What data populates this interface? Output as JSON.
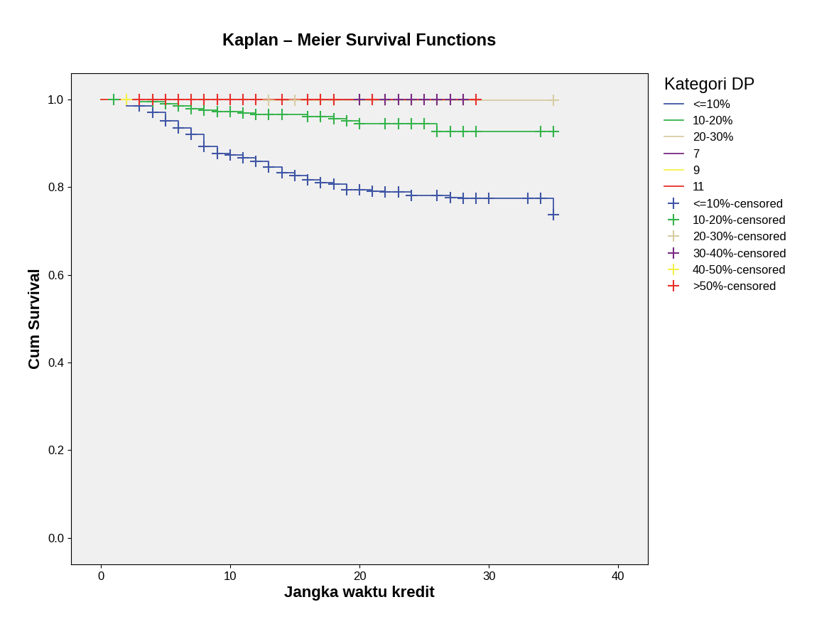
{
  "chart_data": {
    "type": "kaplan_meier",
    "title": "Kaplan – Meier Survival Functions",
    "x_label": "Jangka waktu kredit",
    "y_label": "Cum Survival",
    "legend_title": "Kategori DP",
    "legend": "upper left",
    "xlim": [
      -2.3,
      42.3
    ],
    "xticks": [
      0,
      10,
      20,
      30,
      40
    ],
    "ylim": [
      -0.06,
      1.06
    ],
    "yticks": [
      0.0,
      0.2,
      0.4,
      0.6,
      0.8,
      1.0
    ],
    "grid": false,
    "series": [
      {
        "name": "<=10%",
        "type": "step",
        "color": "#3f55a5",
        "line_style": "solid",
        "x": [
          0,
          2,
          4,
          5,
          6,
          7,
          8,
          9,
          10,
          11,
          12,
          13,
          14,
          15,
          16,
          17,
          18,
          19,
          21,
          22,
          24,
          27,
          28,
          35
        ],
        "values": [
          1.0,
          0.985,
          0.97,
          0.95,
          0.935,
          0.92,
          0.893,
          0.877,
          0.873,
          0.866,
          0.858,
          0.846,
          0.832,
          0.826,
          0.817,
          0.81,
          0.806,
          0.793,
          0.79,
          0.788,
          0.781,
          0.776,
          0.774,
          0.737
        ]
      },
      {
        "name": "10-20%",
        "type": "step",
        "color": "#33b34a",
        "line_style": "solid",
        "x": [
          0,
          3,
          5,
          6,
          7,
          8,
          9,
          11,
          12,
          16,
          18,
          19,
          20,
          26,
          35
        ],
        "values": [
          1.0,
          0.995,
          0.99,
          0.985,
          0.978,
          0.975,
          0.972,
          0.968,
          0.965,
          0.96,
          0.955,
          0.95,
          0.944,
          0.927,
          0.927
        ]
      },
      {
        "name": "20-30%",
        "type": "step",
        "color": "#d8cca4",
        "line_style": "solid",
        "x": [
          0,
          13,
          35
        ],
        "values": [
          1.0,
          0.997,
          0.997
        ]
      },
      {
        "name": "7",
        "type": "step",
        "color": "#7a2a82",
        "line_style": "solid",
        "x": [
          0,
          28
        ],
        "values": [
          1.0,
          1.0
        ]
      },
      {
        "name": "9",
        "type": "step",
        "color": "#f5f04a",
        "line_style": "solid",
        "x": [
          0,
          17
        ],
        "values": [
          1.0,
          1.0
        ]
      },
      {
        "name": "11",
        "type": "step",
        "color": "#e8302a",
        "line_style": "solid",
        "x": [
          0,
          29
        ],
        "values": [
          1.0,
          1.0
        ]
      },
      {
        "name": "<=10%-censored",
        "type": "scatter",
        "color": "#3f55a5",
        "marker": "plus",
        "x": [
          3,
          4,
          5,
          6,
          7,
          8,
          9,
          10,
          11,
          12,
          13,
          14,
          15,
          16,
          17,
          18,
          19,
          20,
          21,
          22,
          23,
          24,
          26,
          27,
          28,
          29,
          30,
          33,
          34,
          35
        ],
        "values": [
          0.985,
          0.97,
          0.95,
          0.935,
          0.92,
          0.893,
          0.877,
          0.873,
          0.866,
          0.858,
          0.846,
          0.832,
          0.826,
          0.817,
          0.81,
          0.806,
          0.793,
          0.793,
          0.79,
          0.788,
          0.788,
          0.781,
          0.781,
          0.776,
          0.774,
          0.774,
          0.774,
          0.774,
          0.774,
          0.737
        ]
      },
      {
        "name": "10-20%-censored",
        "type": "scatter",
        "color": "#33b34a",
        "marker": "plus",
        "x": [
          1,
          4,
          5,
          6,
          7,
          8,
          9,
          10,
          11,
          12,
          13,
          14,
          16,
          17,
          18,
          19,
          20,
          22,
          23,
          24,
          25,
          26,
          27,
          28,
          29,
          34,
          35
        ],
        "values": [
          1.0,
          0.995,
          0.99,
          0.985,
          0.978,
          0.975,
          0.972,
          0.972,
          0.968,
          0.965,
          0.965,
          0.965,
          0.96,
          0.96,
          0.955,
          0.95,
          0.944,
          0.944,
          0.944,
          0.944,
          0.944,
          0.927,
          0.927,
          0.927,
          0.927,
          0.927,
          0.927
        ]
      },
      {
        "name": "20-30%-censored",
        "type": "scatter",
        "color": "#d8cca4",
        "marker": "plus",
        "x": [
          2,
          8,
          13,
          15,
          18,
          20,
          22,
          24,
          26,
          28,
          35
        ],
        "values": [
          1.0,
          1.0,
          0.997,
          0.997,
          0.997,
          0.997,
          0.997,
          0.997,
          0.997,
          0.997,
          0.997
        ]
      },
      {
        "name": "30-40%-censored",
        "type": "scatter",
        "color": "#7a2a82",
        "marker": "plus",
        "x": [
          20,
          21,
          22,
          23,
          24,
          25,
          26,
          27,
          28
        ],
        "values": [
          1.0,
          1.0,
          1.0,
          1.0,
          1.0,
          1.0,
          1.0,
          1.0,
          1.0
        ]
      },
      {
        "name": "40-50%-censored",
        "type": "scatter",
        "color": "#f5f04a",
        "marker": "plus",
        "x": [
          2,
          17
        ],
        "values": [
          1.0,
          1.0
        ]
      },
      {
        "name": ">50%-censored",
        "type": "scatter",
        "color": "#e8302a",
        "marker": "plus",
        "x": [
          3,
          4,
          5,
          6,
          7,
          8,
          9,
          10,
          11,
          12,
          14,
          16,
          17,
          18,
          21,
          29
        ],
        "values": [
          1.0,
          1.0,
          1.0,
          1.0,
          1.0,
          1.0,
          1.0,
          1.0,
          1.0,
          1.0,
          1.0,
          1.0,
          1.0,
          1.0,
          1.0,
          1.0
        ]
      }
    ]
  }
}
